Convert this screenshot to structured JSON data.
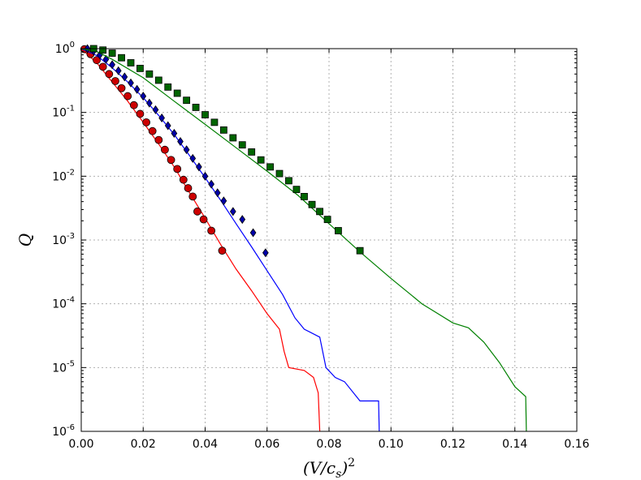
{
  "chart_data": {
    "type": "line",
    "title": "",
    "xlabel": "(V/c_s)²",
    "ylabel": "Q",
    "xlim": [
      0,
      0.16
    ],
    "ylim": [
      1e-06,
      1
    ],
    "yscale": "log",
    "grid": true,
    "x_ticks": [
      "0.00",
      "0.02",
      "0.04",
      "0.06",
      "0.08",
      "0.10",
      "0.12",
      "0.14",
      "0.16"
    ],
    "y_ticks": [
      {
        "base": "10",
        "exp": "0"
      },
      {
        "base": "10",
        "exp": "-1"
      },
      {
        "base": "10",
        "exp": "-2"
      },
      {
        "base": "10",
        "exp": "-3"
      },
      {
        "base": "10",
        "exp": "-4"
      },
      {
        "base": "10",
        "exp": "-5"
      },
      {
        "base": "10",
        "exp": "-6"
      }
    ],
    "series": [
      {
        "color": "#ff0000",
        "marker_color": "#cc0000",
        "marker": "circle",
        "line": [
          [
            0,
            1
          ],
          [
            0.005,
            0.6
          ],
          [
            0.01,
            0.3
          ],
          [
            0.015,
            0.15
          ],
          [
            0.02,
            0.07
          ],
          [
            0.025,
            0.032
          ],
          [
            0.03,
            0.014
          ],
          [
            0.035,
            0.0055
          ],
          [
            0.04,
            0.0022
          ],
          [
            0.045,
            0.00085
          ],
          [
            0.05,
            0.00035
          ],
          [
            0.055,
            0.00016
          ],
          [
            0.06,
            7e-05
          ],
          [
            0.064,
            4e-05
          ],
          [
            0.0655,
            1.8e-05
          ],
          [
            0.067,
            1e-05
          ],
          [
            0.072,
            9e-06
          ],
          [
            0.075,
            7e-06
          ],
          [
            0.0765,
            4e-06
          ],
          [
            0.077,
            1e-06
          ]
        ],
        "markers": [
          [
            0.001,
            0.98
          ],
          [
            0.003,
            0.82
          ],
          [
            0.005,
            0.66
          ],
          [
            0.007,
            0.52
          ],
          [
            0.009,
            0.4
          ],
          [
            0.011,
            0.31
          ],
          [
            0.013,
            0.24
          ],
          [
            0.015,
            0.18
          ],
          [
            0.017,
            0.13
          ],
          [
            0.019,
            0.095
          ],
          [
            0.021,
            0.07
          ],
          [
            0.023,
            0.051
          ],
          [
            0.025,
            0.037
          ],
          [
            0.027,
            0.026
          ],
          [
            0.029,
            0.018
          ],
          [
            0.031,
            0.013
          ],
          [
            0.033,
            0.0088
          ],
          [
            0.0345,
            0.0065
          ],
          [
            0.036,
            0.0048
          ],
          [
            0.0375,
            0.0028
          ],
          [
            0.0395,
            0.0021
          ],
          [
            0.042,
            0.0014
          ],
          [
            0.0455,
            0.00068
          ]
        ]
      },
      {
        "color": "#0000ff",
        "marker_color": "#0000aa",
        "marker": "diamond",
        "line": [
          [
            0,
            1
          ],
          [
            0.005,
            0.78
          ],
          [
            0.01,
            0.5
          ],
          [
            0.015,
            0.3
          ],
          [
            0.02,
            0.17
          ],
          [
            0.025,
            0.09
          ],
          [
            0.03,
            0.045
          ],
          [
            0.035,
            0.021
          ],
          [
            0.04,
            0.0095
          ],
          [
            0.045,
            0.0042
          ],
          [
            0.05,
            0.0018
          ],
          [
            0.055,
            0.00078
          ],
          [
            0.06,
            0.00033
          ],
          [
            0.065,
            0.00014
          ],
          [
            0.069,
            6e-05
          ],
          [
            0.072,
            4e-05
          ],
          [
            0.077,
            3e-05
          ],
          [
            0.079,
            1e-05
          ],
          [
            0.082,
            7e-06
          ],
          [
            0.085,
            6e-06
          ],
          [
            0.09,
            3e-06
          ],
          [
            0.096,
            3e-06
          ],
          [
            0.0962,
            1e-06
          ]
        ],
        "markers": [
          [
            0.002,
            1
          ],
          [
            0.004,
            0.92
          ],
          [
            0.006,
            0.8
          ],
          [
            0.008,
            0.68
          ],
          [
            0.01,
            0.56
          ],
          [
            0.012,
            0.45
          ],
          [
            0.014,
            0.36
          ],
          [
            0.016,
            0.29
          ],
          [
            0.018,
            0.23
          ],
          [
            0.02,
            0.18
          ],
          [
            0.022,
            0.14
          ],
          [
            0.024,
            0.11
          ],
          [
            0.026,
            0.082
          ],
          [
            0.028,
            0.062
          ],
          [
            0.03,
            0.047
          ],
          [
            0.032,
            0.035
          ],
          [
            0.034,
            0.026
          ],
          [
            0.036,
            0.019
          ],
          [
            0.038,
            0.014
          ],
          [
            0.04,
            0.01
          ],
          [
            0.042,
            0.0075
          ],
          [
            0.044,
            0.0055
          ],
          [
            0.046,
            0.0041
          ],
          [
            0.049,
            0.0028
          ],
          [
            0.052,
            0.0021
          ],
          [
            0.0555,
            0.0013
          ],
          [
            0.0595,
            0.00063
          ]
        ]
      },
      {
        "color": "#008000",
        "marker_color": "#006400",
        "marker": "square",
        "line": [
          [
            0,
            1
          ],
          [
            0.005,
            0.9
          ],
          [
            0.01,
            0.68
          ],
          [
            0.02,
            0.35
          ],
          [
            0.03,
            0.15
          ],
          [
            0.04,
            0.065
          ],
          [
            0.05,
            0.028
          ],
          [
            0.06,
            0.012
          ],
          [
            0.07,
            0.005
          ],
          [
            0.08,
            0.0018
          ],
          [
            0.09,
            0.00065
          ],
          [
            0.1,
            0.00025
          ],
          [
            0.11,
            0.0001
          ],
          [
            0.12,
            5e-05
          ],
          [
            0.125,
            4.2e-05
          ],
          [
            0.13,
            2.5e-05
          ],
          [
            0.135,
            1.2e-05
          ],
          [
            0.14,
            5e-06
          ],
          [
            0.1435,
            3.5e-06
          ],
          [
            0.1437,
            1e-06
          ]
        ],
        "markers": [
          [
            0.004,
            1
          ],
          [
            0.007,
            0.95
          ],
          [
            0.01,
            0.85
          ],
          [
            0.013,
            0.72
          ],
          [
            0.016,
            0.6
          ],
          [
            0.019,
            0.49
          ],
          [
            0.022,
            0.4
          ],
          [
            0.025,
            0.32
          ],
          [
            0.028,
            0.25
          ],
          [
            0.031,
            0.2
          ],
          [
            0.034,
            0.155
          ],
          [
            0.037,
            0.12
          ],
          [
            0.04,
            0.092
          ],
          [
            0.043,
            0.07
          ],
          [
            0.046,
            0.053
          ],
          [
            0.049,
            0.04
          ],
          [
            0.052,
            0.031
          ],
          [
            0.055,
            0.024
          ],
          [
            0.058,
            0.018
          ],
          [
            0.061,
            0.014
          ],
          [
            0.064,
            0.011
          ],
          [
            0.067,
            0.0085
          ],
          [
            0.0695,
            0.0062
          ],
          [
            0.072,
            0.0048
          ],
          [
            0.0745,
            0.0036
          ],
          [
            0.077,
            0.0028
          ],
          [
            0.0795,
            0.0021
          ],
          [
            0.083,
            0.0014
          ],
          [
            0.09,
            0.00068
          ]
        ]
      }
    ]
  }
}
